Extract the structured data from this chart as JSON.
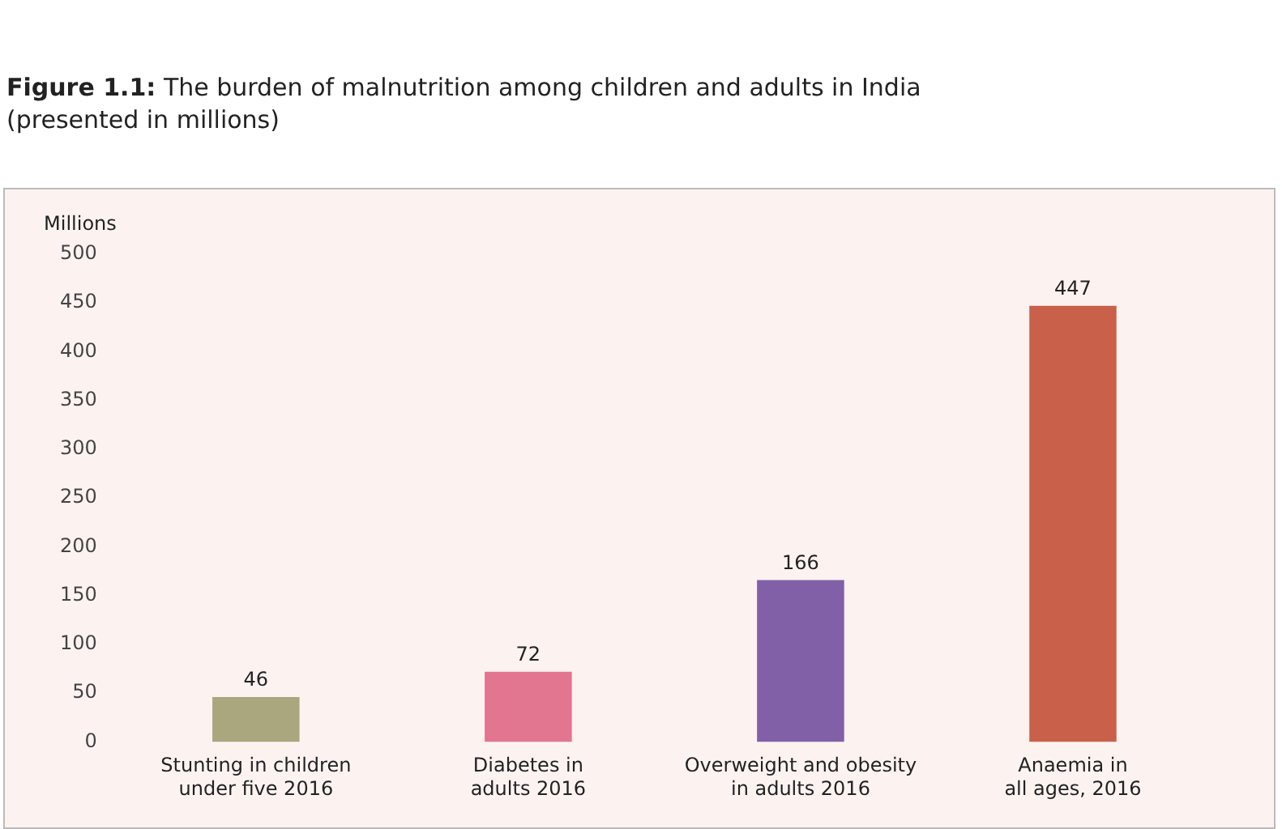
{
  "chart_data": {
    "type": "bar",
    "title": "Figure 1.1: The burden of malnutrition among children and adults in India\n(presented in millions)",
    "ylabel": "Millions",
    "categories": [
      "Stunting in children\nunder five 2016",
      "Diabetes in\nadults 2016",
      "Overweight and obesity\nin adults 2016",
      "Anaemia in\nall ages, 2016"
    ],
    "values": [
      46,
      72,
      166,
      447
    ],
    "colors": [
      "#aaa67e",
      "#e27590",
      "#8160a8",
      "#c9604a"
    ],
    "ylim": [
      0,
      500
    ],
    "yticks": [
      0,
      50,
      100,
      150,
      200,
      250,
      300,
      350,
      400,
      450,
      500
    ],
    "grid": false,
    "legend": false,
    "data_labels": true
  }
}
